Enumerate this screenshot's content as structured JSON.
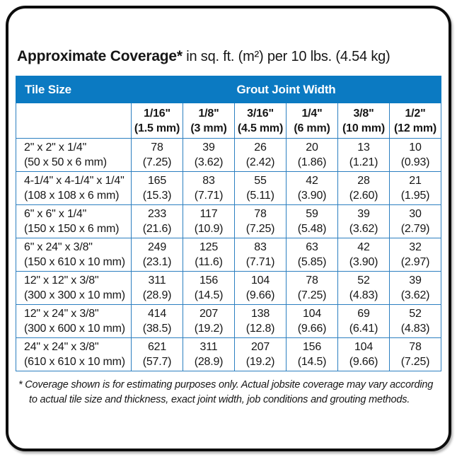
{
  "title": {
    "bold": "Approximate Coverage*",
    "rest": " in sq. ft. (m²) per 10 lbs. (4.54 kg)"
  },
  "table": {
    "header": {
      "tile_size": "Tile Size",
      "grout_joint_width": "Grout Joint Width"
    },
    "columns": [
      {
        "inch": "1/16\"",
        "mm": "(1.5 mm)"
      },
      {
        "inch": "1/8\"",
        "mm": "(3 mm)"
      },
      {
        "inch": "3/16\"",
        "mm": "(4.5 mm)"
      },
      {
        "inch": "1/4\"",
        "mm": "(6 mm)"
      },
      {
        "inch": "3/8\"",
        "mm": "(10 mm)"
      },
      {
        "inch": "1/2\"",
        "mm": "(12 mm)"
      }
    ],
    "rows": [
      {
        "size_in": "2\" x 2\" x 1/4\"",
        "size_mm": "(50 x 50 x 6 mm)",
        "values": [
          {
            "sqft": "78",
            "m2": "(7.25)"
          },
          {
            "sqft": "39",
            "m2": "(3.62)"
          },
          {
            "sqft": "26",
            "m2": "(2.42)"
          },
          {
            "sqft": "20",
            "m2": "(1.86)"
          },
          {
            "sqft": "13",
            "m2": "(1.21)"
          },
          {
            "sqft": "10",
            "m2": "(0.93)"
          }
        ]
      },
      {
        "size_in": "4-1/4\" x 4-1/4\" x 1/4\"",
        "size_mm": "(108 x 108 x 6 mm)",
        "values": [
          {
            "sqft": "165",
            "m2": "(15.3)"
          },
          {
            "sqft": "83",
            "m2": "(7.71)"
          },
          {
            "sqft": "55",
            "m2": "(5.11)"
          },
          {
            "sqft": "42",
            "m2": "(3.90)"
          },
          {
            "sqft": "28",
            "m2": "(2.60)"
          },
          {
            "sqft": "21",
            "m2": "(1.95)"
          }
        ]
      },
      {
        "size_in": "6\" x 6\" x 1/4\"",
        "size_mm": "(150 x 150 x 6 mm)",
        "values": [
          {
            "sqft": "233",
            "m2": "(21.6)"
          },
          {
            "sqft": "117",
            "m2": "(10.9)"
          },
          {
            "sqft": "78",
            "m2": "(7.25)"
          },
          {
            "sqft": "59",
            "m2": "(5.48)"
          },
          {
            "sqft": "39",
            "m2": "(3.62)"
          },
          {
            "sqft": "30",
            "m2": "(2.79)"
          }
        ]
      },
      {
        "size_in": "6\" x 24\" x 3/8\"",
        "size_mm": "(150 x 610 x 10 mm)",
        "values": [
          {
            "sqft": "249",
            "m2": "(23.1)"
          },
          {
            "sqft": "125",
            "m2": "(11.6)"
          },
          {
            "sqft": "83",
            "m2": "(7.71)"
          },
          {
            "sqft": "63",
            "m2": "(5.85)"
          },
          {
            "sqft": "42",
            "m2": "(3.90)"
          },
          {
            "sqft": "32",
            "m2": "(2.97)"
          }
        ]
      },
      {
        "size_in": "12\" x 12\" x 3/8\"",
        "size_mm": "(300 x 300 x 10 mm)",
        "values": [
          {
            "sqft": "311",
            "m2": "(28.9)"
          },
          {
            "sqft": "156",
            "m2": "(14.5)"
          },
          {
            "sqft": "104",
            "m2": "(9.66)"
          },
          {
            "sqft": "78",
            "m2": "(7.25)"
          },
          {
            "sqft": "52",
            "m2": "(4.83)"
          },
          {
            "sqft": "39",
            "m2": "(3.62)"
          }
        ]
      },
      {
        "size_in": "12\" x 24\" x 3/8\"",
        "size_mm": "(300 x 600 x 10 mm)",
        "values": [
          {
            "sqft": "414",
            "m2": "(38.5)"
          },
          {
            "sqft": "207",
            "m2": "(19.2)"
          },
          {
            "sqft": "138",
            "m2": "(12.8)"
          },
          {
            "sqft": "104",
            "m2": "(9.66)"
          },
          {
            "sqft": "69",
            "m2": "(6.41)"
          },
          {
            "sqft": "52",
            "m2": "(4.83)"
          }
        ]
      },
      {
        "size_in": "24\" x 24\" x 3/8\"",
        "size_mm": "(610 x 610 x 10 mm)",
        "values": [
          {
            "sqft": "621",
            "m2": "(57.7)"
          },
          {
            "sqft": "311",
            "m2": "(28.9)"
          },
          {
            "sqft": "207",
            "m2": "(19.2)"
          },
          {
            "sqft": "156",
            "m2": "(14.5)"
          },
          {
            "sqft": "104",
            "m2": "(9.66)"
          },
          {
            "sqft": "78",
            "m2": "(7.25)"
          }
        ]
      }
    ]
  },
  "footnote": {
    "marker": "* ",
    "text": "Coverage shown is for estimating purposes only. Actual jobsite coverage may vary according to actual tile size and thickness, exact joint width, job conditions and grouting methods."
  },
  "colors": {
    "header_blue": "#0b7ac2",
    "grid_blue": "#2c7fc0",
    "text": "#161616",
    "card_border": "#0d0d0d"
  }
}
